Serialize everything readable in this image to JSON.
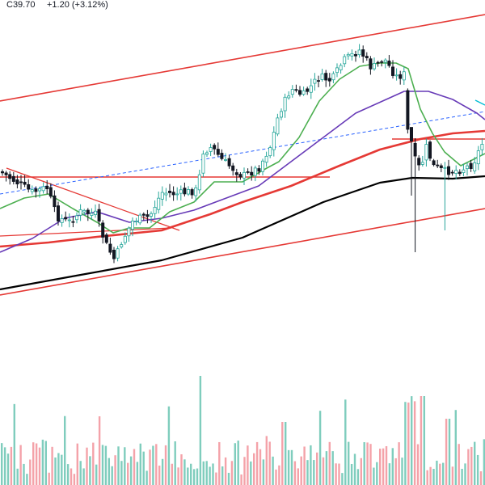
{
  "header": {
    "close_text": "C39.70",
    "change_text": "+1.20 (+3.12%)"
  },
  "colors": {
    "up": "#26a69a",
    "down": "#131722",
    "vol_up": "#7fcdbd",
    "vol_down": "#f4a2a9",
    "ema_short": "#4caf50",
    "ema_mid": "#673ab7",
    "sma_50": "#e53935",
    "sma_200": "#000000",
    "trendline": "#e53935",
    "dashed": "#2962ff",
    "cyan": "#00bcd4"
  },
  "chart_data": {
    "type": "candlestick",
    "last_close": 39.7,
    "change": 1.2,
    "change_pct": 3.12,
    "grid": false,
    "series_lines": [
      {
        "role": "short-term moving average",
        "color": "#4caf50"
      },
      {
        "role": "medium-term moving average",
        "color": "#673ab7"
      },
      {
        "role": "50-period moving average",
        "color": "#e53935"
      },
      {
        "role": "200-period moving average",
        "color": "#000000"
      }
    ],
    "annotations": [
      "upper channel line",
      "lower channel line",
      "horizontal support line",
      "descending wedge lines",
      "dashed trend line"
    ]
  }
}
